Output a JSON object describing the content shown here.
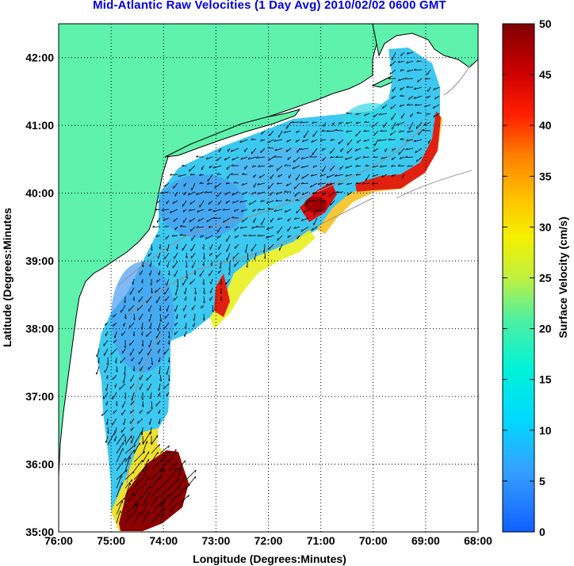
{
  "title": "Mid-Atlantic Raw Velocities (1 Day Avg) 2010/02/02 0600 GMT",
  "xlabel": "Longitude (Degrees:Minutes)",
  "ylabel": "Latitude (Degrees:Minutes",
  "x_ticks": [
    "76:00",
    "75:00",
    "74:00",
    "73:00",
    "72:00",
    "71:00",
    "70:00",
    "69:00",
    "68:00"
  ],
  "y_ticks": [
    "42:00",
    "41:00",
    "40:00",
    "39:00",
    "38:00",
    "37:00",
    "36:00",
    "35:00"
  ],
  "colorbar": {
    "label": "Surface Velocity (cm/s)",
    "ticks": [
      "50",
      "45",
      "40",
      "35",
      "30",
      "25",
      "20",
      "15",
      "10",
      "5",
      "0"
    ],
    "range": [
      0,
      50
    ]
  },
  "colors": {
    "land": "#5ef2ac",
    "title": "#0000e0"
  },
  "chart_data": {
    "type": "heatmap",
    "title": "Mid-Atlantic Raw Velocities (1 Day Avg) 2010/02/02 0600 GMT",
    "xlabel": "Longitude (Degrees:Minutes)",
    "ylabel": "Latitude (Degrees:Minutes",
    "xlim": [
      -76,
      -68
    ],
    "ylim": [
      35,
      42.5
    ],
    "colorbar_range": [
      0,
      50
    ],
    "colorbar_unit": "cm/s",
    "grid": true
  }
}
